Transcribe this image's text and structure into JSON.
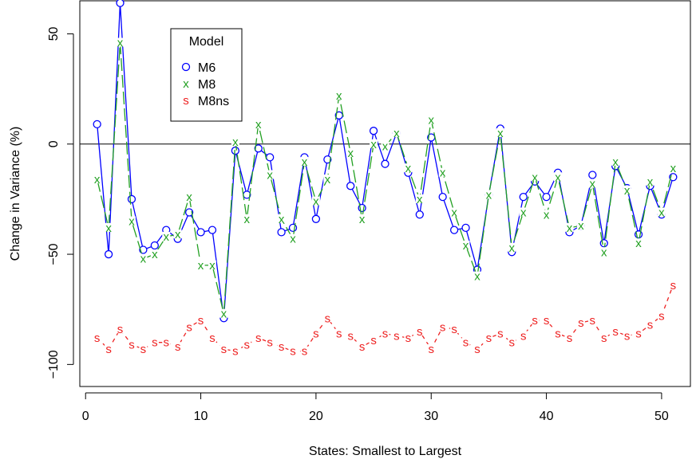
{
  "chart_data": {
    "type": "scatter",
    "title": "",
    "xlabel": "States: Smallest to Largest",
    "ylabel": "Change in Variance (%)",
    "xlim": [
      -0.5,
      52.5
    ],
    "ylim": [
      -110,
      65
    ],
    "xticks": [
      0,
      10,
      20,
      30,
      40,
      50
    ],
    "yticks": [
      -100,
      -50,
      0,
      50
    ],
    "ytick_labels": [
      "−100",
      "−50",
      "0",
      "50"
    ],
    "reference_line_y": 0,
    "legend": {
      "title": "Model",
      "position": "top-left"
    },
    "series": [
      {
        "name": "M6",
        "marker": "o",
        "color": "#0000ff",
        "dash": "solid",
        "x": [
          1,
          2,
          3,
          4,
          5,
          6,
          7,
          8,
          9,
          10,
          11,
          12,
          13,
          14,
          15,
          16,
          17,
          18,
          19,
          20,
          21,
          22,
          23,
          24,
          25,
          26,
          27,
          28,
          29,
          30,
          31,
          32,
          33,
          34,
          35,
          36,
          37,
          38,
          39,
          40,
          41,
          42,
          43,
          44,
          45,
          46,
          47,
          48,
          49,
          50,
          51
        ],
        "values": [
          9,
          -50,
          64,
          -25,
          -48,
          -46,
          -39,
          -43,
          -31,
          -40,
          -39,
          -79,
          -3,
          -23,
          -2,
          -6,
          -40,
          -38,
          -6,
          -34,
          -7,
          13,
          -19,
          -29,
          6,
          -9,
          5,
          -13,
          -32,
          3,
          -24,
          -39,
          -38,
          -57,
          -23,
          7,
          -49,
          -24,
          -17,
          -24,
          -13,
          -40,
          -37,
          -14,
          -45,
          -10,
          -20,
          -41,
          -19,
          -32,
          -15
        ]
      },
      {
        "name": "M8",
        "marker": "x",
        "color": "#22a022",
        "dash": "long-dash",
        "x": [
          1,
          2,
          3,
          4,
          5,
          6,
          7,
          8,
          9,
          10,
          11,
          12,
          13,
          14,
          15,
          16,
          17,
          18,
          19,
          20,
          21,
          22,
          23,
          24,
          25,
          26,
          27,
          28,
          29,
          30,
          31,
          32,
          33,
          34,
          35,
          36,
          37,
          38,
          39,
          40,
          41,
          42,
          43,
          44,
          45,
          46,
          47,
          48,
          49,
          50,
          51
        ],
        "values": [
          -16,
          -38,
          46,
          -35,
          -52,
          -50,
          -42,
          -41,
          -24,
          -55,
          -55,
          -77,
          1,
          -34,
          9,
          -14,
          -34,
          -43,
          -8,
          -26,
          -16,
          22,
          -4,
          -34,
          0,
          -1,
          5,
          -11,
          -25,
          11,
          -13,
          -31,
          -46,
          -60,
          -23,
          5,
          -47,
          -31,
          -15,
          -32,
          -15,
          -38,
          -37,
          -18,
          -49,
          -8,
          -21,
          -45,
          -17,
          -31,
          -11
        ]
      },
      {
        "name": "M8ns",
        "marker": "s",
        "color": "#ee2222",
        "dash": "short-dash",
        "x": [
          1,
          2,
          3,
          4,
          5,
          6,
          7,
          8,
          9,
          10,
          11,
          12,
          13,
          14,
          15,
          16,
          17,
          18,
          19,
          20,
          21,
          22,
          23,
          24,
          25,
          26,
          27,
          28,
          29,
          30,
          31,
          32,
          33,
          34,
          35,
          36,
          37,
          38,
          39,
          40,
          41,
          42,
          43,
          44,
          45,
          46,
          47,
          48,
          49,
          50,
          51
        ],
        "values": [
          -88,
          -93,
          -84,
          -91,
          -93,
          -90,
          -90,
          -92,
          -83,
          -80,
          -88,
          -93,
          -94,
          -91,
          -88,
          -90,
          -92,
          -94,
          -94,
          -86,
          -79,
          -86,
          -87,
          -92,
          -89,
          -86,
          -87,
          -88,
          -85,
          -93,
          -83,
          -84,
          -90,
          -93,
          -88,
          -86,
          -90,
          -87,
          -80,
          -80,
          -86,
          -88,
          -81,
          -80,
          -88,
          -85,
          -87,
          -86,
          -82,
          -78,
          -64
        ]
      }
    ]
  }
}
